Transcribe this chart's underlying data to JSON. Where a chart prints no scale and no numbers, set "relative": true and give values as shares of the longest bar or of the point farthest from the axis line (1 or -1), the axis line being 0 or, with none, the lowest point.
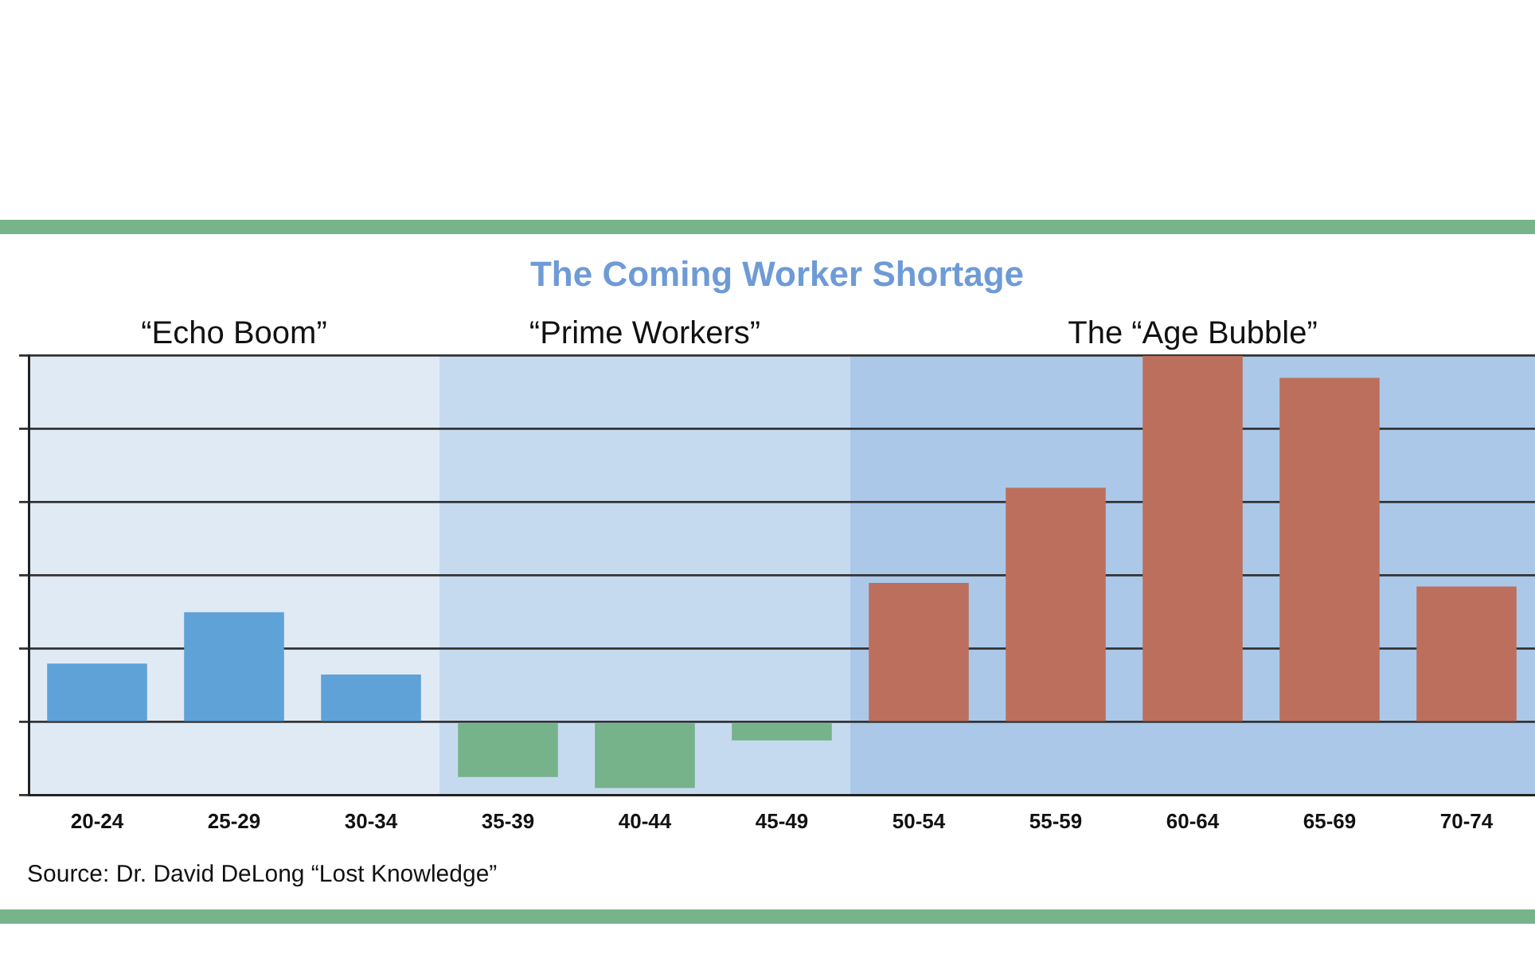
{
  "chart_data": {
    "type": "bar",
    "title": "The Coming Worker Shortage",
    "categories": [
      "20-24",
      "25-29",
      "30-34",
      "35-39",
      "40-44",
      "45-49",
      "50-54",
      "55-59",
      "60-64",
      "65-69",
      "70-74"
    ],
    "values": [
      0.16,
      0.3,
      0.13,
      -0.15,
      -0.18,
      -0.05,
      0.38,
      0.64,
      1,
      0.94,
      0.37
    ],
    "colors": [
      "#5fa2d8",
      "#5fa2d8",
      "#5fa2d8",
      "#76b28a",
      "#76b28a",
      "#76b28a",
      "#bd6f5d",
      "#bd6f5d",
      "#bd6f5d",
      "#bd6f5d",
      "#bd6f5d"
    ],
    "relative": true,
    "grid": "y",
    "legend": false,
    "bands": [
      {
        "axis": "x",
        "from": "20-24",
        "to": "30-34",
        "label": "“Echo Boom”",
        "color": "#e0eaf5"
      },
      {
        "axis": "x",
        "from": "35-39",
        "to": "45-49",
        "label": "“Prime Workers”",
        "color": "#c6daef"
      },
      {
        "axis": "x",
        "from": "50-54",
        "to": "70-74",
        "label": "The “Age Bubble”",
        "color": "#abc8e8"
      }
    ],
    "annotations": [
      "Source: Dr. David DeLong “Lost Knowledge”"
    ]
  }
}
